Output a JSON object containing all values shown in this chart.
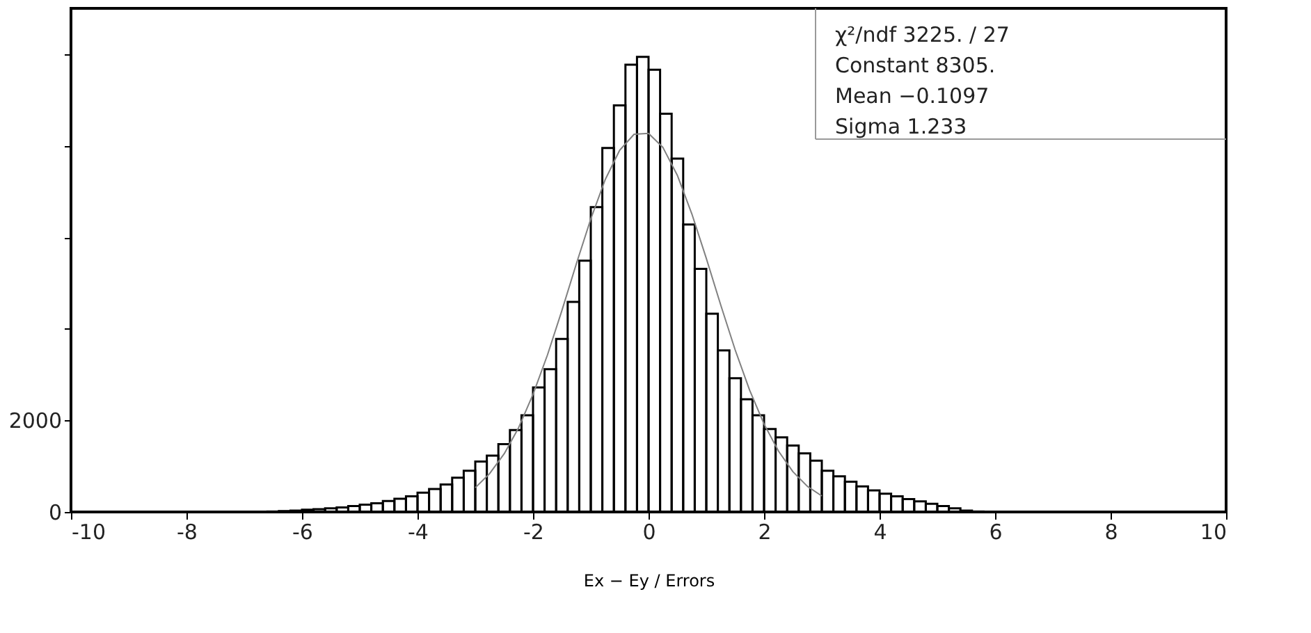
{
  "chart_data": {
    "type": "histogram",
    "xlabel": "Ex − Ey / Errors",
    "bins": [
      -10,
      -9.8,
      -9.6,
      -9.4,
      -9.2,
      -9,
      -8.8,
      -8.6,
      -8.4,
      -8.2,
      -8,
      -7.8,
      -7.6,
      -7.4,
      -7.2,
      -7,
      -6.8,
      -6.6,
      -6.4,
      -6.2,
      -6,
      -5.8,
      -5.6,
      -5.4,
      -5.2,
      -5,
      -4.8,
      -4.6,
      -4.4,
      -4.2,
      -4,
      -3.8,
      -3.6,
      -3.4,
      -3.2,
      -3,
      -2.8,
      -2.6,
      -2.4,
      -2.2,
      -2,
      -1.8,
      -1.6,
      -1.4,
      -1.2,
      -1,
      -0.8,
      -0.6,
      -0.4,
      -0.2,
      0,
      0.2,
      0.4,
      0.6,
      0.8,
      1,
      1.2,
      1.4,
      1.6,
      1.8,
      2,
      2.2,
      2.4,
      2.6,
      2.8,
      3,
      3.2,
      3.4,
      3.6,
      3.8,
      4,
      4.2,
      4.4,
      4.6,
      4.8,
      5,
      5.2,
      5.4,
      5.6,
      5.8,
      6,
      6.2,
      6.4,
      6.6,
      6.8,
      7,
      7.2,
      7.4,
      7.6,
      7.8,
      8,
      8.2,
      8.4,
      8.6,
      8.8,
      9,
      9.2,
      9.4,
      9.6,
      9.8,
      10
    ],
    "values": [
      0,
      0,
      0,
      0,
      0,
      0,
      0,
      0,
      0,
      0,
      0,
      0,
      0,
      0,
      0,
      0,
      0,
      10,
      20,
      30,
      50,
      60,
      80,
      100,
      130,
      160,
      190,
      240,
      290,
      340,
      420,
      500,
      600,
      750,
      900,
      1100,
      1230,
      1480,
      1790,
      2110,
      2720,
      3120,
      3780,
      4590,
      5490,
      6660,
      7950,
      8880,
      9770,
      9940,
      9660,
      8700,
      7720,
      6280,
      5310,
      4330,
      3530,
      2920,
      2460,
      2110,
      1810,
      1630,
      1450,
      1280,
      1120,
      900,
      780,
      660,
      560,
      470,
      400,
      340,
      280,
      230,
      180,
      130,
      80,
      30,
      10,
      0,
      0,
      0,
      0,
      0,
      0,
      0,
      0,
      0,
      0,
      0,
      0,
      0,
      0,
      0,
      0,
      0,
      0,
      0,
      0,
      0
    ],
    "color": "#000000",
    "series": [
      {
        "type": "line",
        "color": "#808080",
        "x": [
          -3,
          -2.75,
          -2.5,
          -2.25,
          -2,
          -1.75,
          -1.5,
          -1.25,
          -1,
          -0.75,
          -0.5,
          -0.25,
          0,
          0.25,
          0.5,
          0.75,
          1,
          1.25,
          1.5,
          1.75,
          2,
          2.25,
          2.5,
          2.75,
          3
        ],
        "values": [
          530,
          840,
          1270,
          1840,
          2570,
          3430,
          4400,
          5420,
          6400,
          7260,
          7900,
          8250,
          8270,
          7960,
          7350,
          6510,
          5540,
          4520,
          3540,
          2660,
          1920,
          1330,
          880,
          560,
          350
        ]
      }
    ],
    "xlim": [
      -10,
      10
    ],
    "xticks": [
      -10,
      -8,
      -6,
      -4,
      -2,
      0,
      2,
      4,
      6,
      8,
      10
    ],
    "ylim": [
      0,
      11000
    ],
    "yticks": [
      0,
      2000,
      {
        "value": 4000,
        "label": null
      },
      {
        "value": 6000,
        "label": null
      },
      {
        "value": 8000,
        "label": null
      },
      {
        "value": 10000,
        "label": null
      }
    ],
    "grid": false,
    "annotations": [
      "χ²/ndf   3225.  /  27",
      "Constant   8305.",
      "Mean   −0.1097",
      "Sigma   1.233"
    ]
  }
}
